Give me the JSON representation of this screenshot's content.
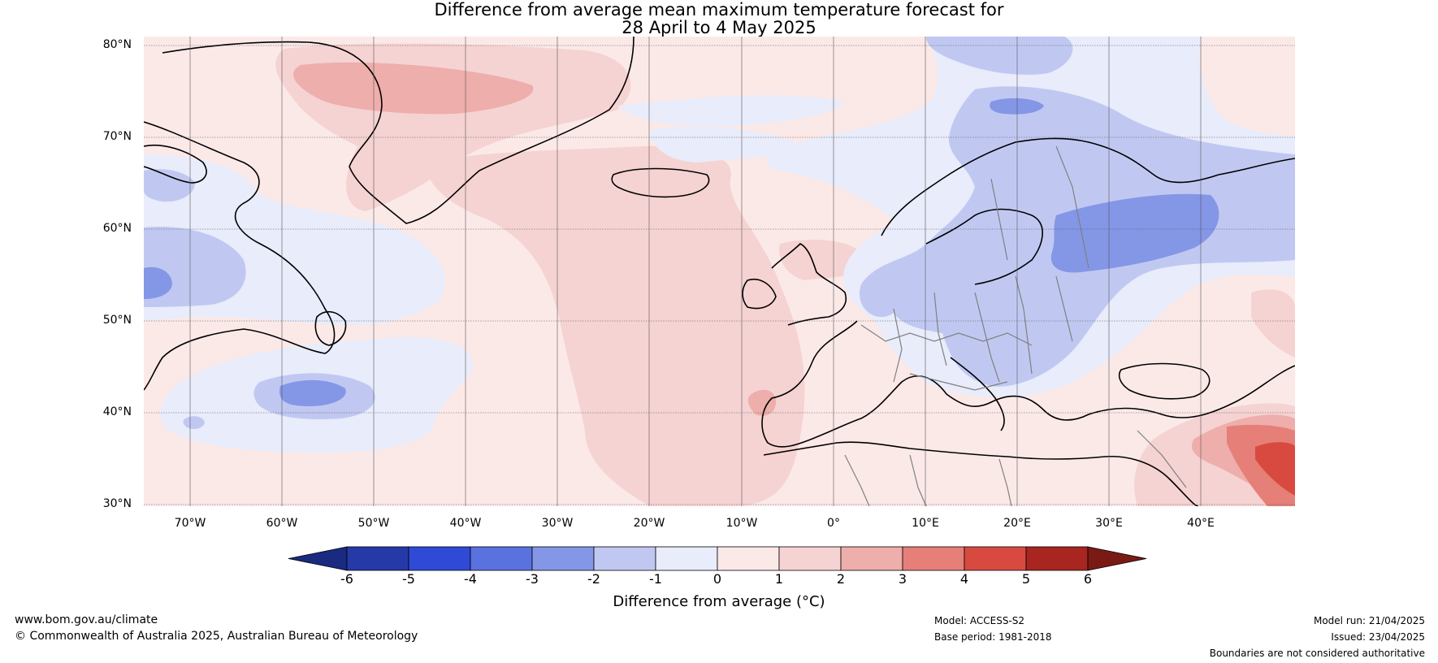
{
  "title_line1": "Difference from average mean maximum temperature forecast for",
  "title_line2": "28 April to 4 May 2025",
  "lat_labels": [
    "80°N",
    "70°N",
    "60°N",
    "50°N",
    "40°N",
    "30°N"
  ],
  "lon_labels": [
    "70°W",
    "60°W",
    "50°W",
    "40°W",
    "30°W",
    "20°W",
    "10°W",
    "0°",
    "10°E",
    "20°E",
    "30°E",
    "40°E"
  ],
  "legend": {
    "title": "Difference from average (°C)",
    "ticks": [
      "-6",
      "-5",
      "-4",
      "-3",
      "-2",
      "-1",
      "0",
      "1",
      "2",
      "3",
      "4",
      "5",
      "6"
    ],
    "colors": [
      "#1a2a80",
      "#2639a8",
      "#2f4ad6",
      "#5a72e0",
      "#8496e6",
      "#c0c8f2",
      "#e8ecfb",
      "#fbe9e8",
      "#f5d3d2",
      "#eeaeab",
      "#e57f78",
      "#d84a40",
      "#a82520",
      "#7a1a15"
    ]
  },
  "footer": {
    "website": "www.bom.gov.au/climate",
    "copyright": "© Commonwealth of Australia 2025, Australian Bureau of Meteorology",
    "model": "Model: ACCESS-S2",
    "base_period": "Base period: 1981-2018",
    "model_run": "Model run: 21/04/2025",
    "issued": "Issued: 23/04/2025",
    "disclaimer": "Boundaries are not considered authoritative"
  }
}
